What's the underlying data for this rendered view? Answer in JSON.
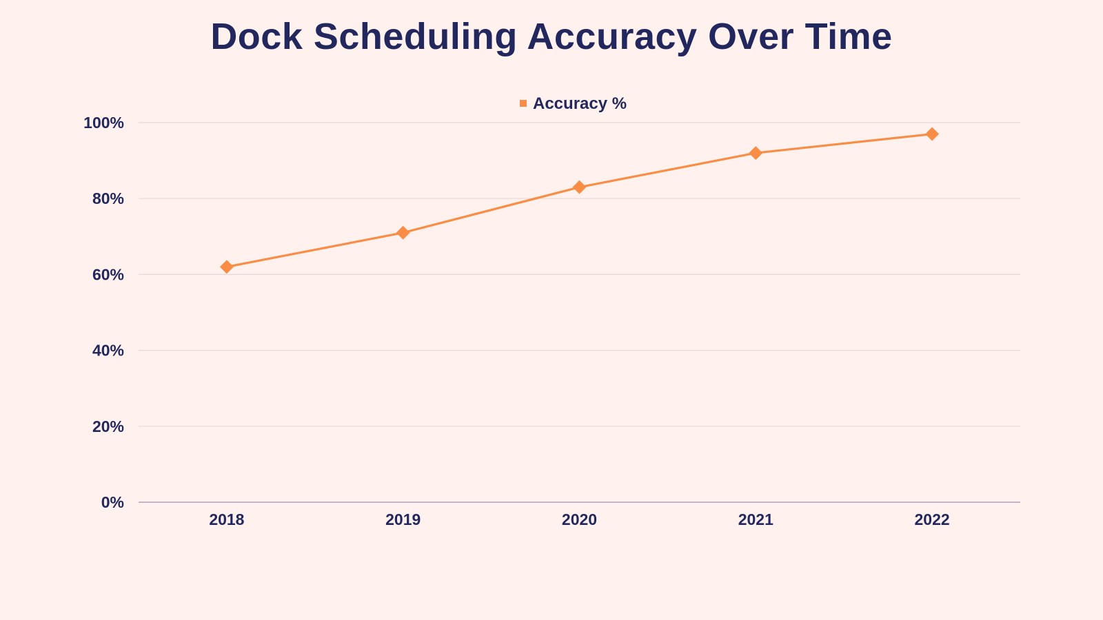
{
  "chart_data": {
    "type": "line",
    "title": "Dock Scheduling Accuracy Over Time",
    "categories": [
      "2018",
      "2019",
      "2020",
      "2021",
      "2022"
    ],
    "series": [
      {
        "name": "Accuracy %",
        "values": [
          62,
          71,
          83,
          92,
          97
        ],
        "color": "#fa8d45",
        "marker": "diamond"
      }
    ],
    "xlabel": "",
    "ylabel": "",
    "ylim": [
      0,
      100
    ],
    "yticks": [
      "0%",
      "20%",
      "40%",
      "60%",
      "80%",
      "100%"
    ],
    "ytick_values": [
      0,
      20,
      40,
      60,
      80,
      100
    ],
    "grid": true,
    "legend_position": "top-center",
    "colors": {
      "background": "#fff1ed",
      "text": "#22285e",
      "grid": "#e6d8d6",
      "axis": "#a8a6b3"
    }
  }
}
